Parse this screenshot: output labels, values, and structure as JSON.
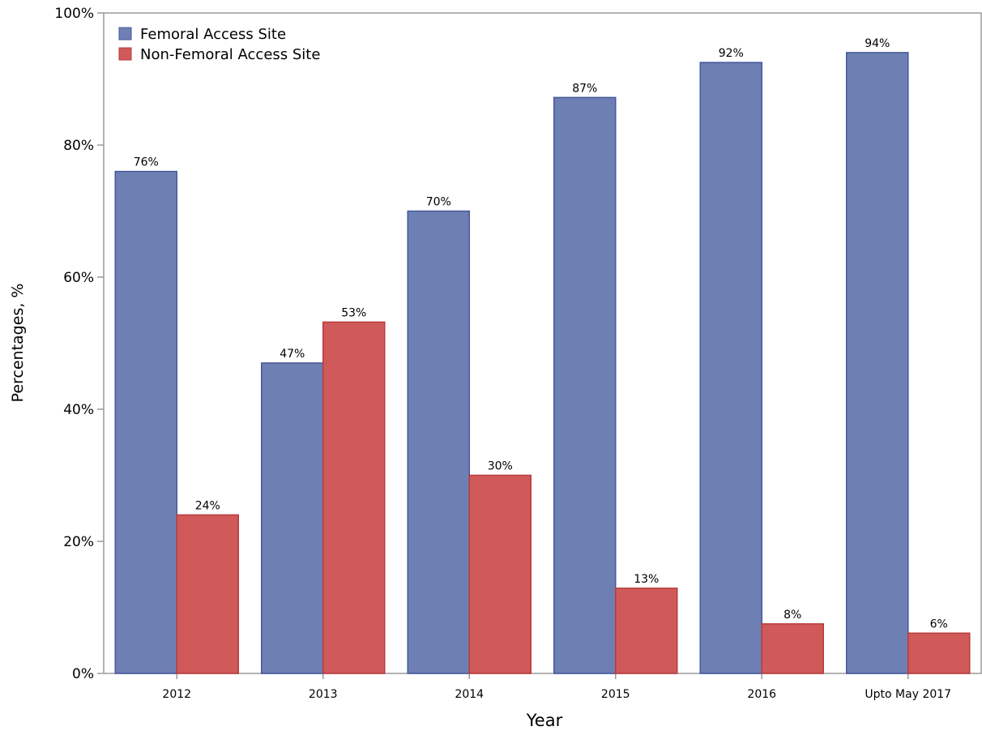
{
  "chart_data": {
    "type": "bar",
    "xlabel": "Year",
    "ylabel": "Percentages, %",
    "categories": [
      "2012",
      "2013",
      "2014",
      "2015",
      "2016",
      "Upto May 2017"
    ],
    "series": [
      {
        "name": "Femoral Access Site",
        "color": "#6e7fb4",
        "edge_color": "#44589a",
        "values": [
          76,
          47,
          70,
          87.2,
          92.5,
          94
        ],
        "labels": [
          "76%",
          "47%",
          "70%",
          "87%",
          "92%",
          "94%"
        ]
      },
      {
        "name": "Non-Femoral Access Site",
        "color": "#d05a5a",
        "edge_color": "#b83b3b",
        "values": [
          24,
          53.2,
          30,
          12.9,
          7.5,
          6.1
        ],
        "labels": [
          "24%",
          "53%",
          "30%",
          "13%",
          "8%",
          "6%"
        ]
      }
    ],
    "ylim": [
      0,
      100
    ],
    "yticks": [
      0,
      20,
      40,
      60,
      80,
      100
    ],
    "ytick_labels": [
      "0%",
      "20%",
      "40%",
      "60%",
      "80%",
      "100%"
    ],
    "grid": false,
    "legend_position": "top-left"
  }
}
